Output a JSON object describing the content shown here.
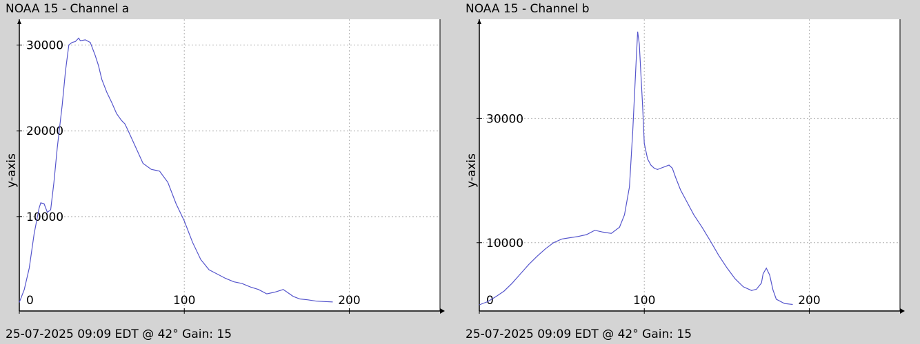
{
  "chart_data": [
    {
      "type": "line",
      "title": "NOAA 15 - Channel a",
      "ylabel": "y-axis",
      "xlabel": "",
      "footer": "25-07-2025 09:09 EDT @ 42° Gain: 15",
      "line_color": "#5555cc",
      "grid": true,
      "xlim": [
        0,
        255
      ],
      "ylim": [
        -1000,
        33000
      ],
      "x_ticks": [
        0,
        100,
        200
      ],
      "x_tick_labels": [
        "0",
        "100",
        "200"
      ],
      "y_ticks": [
        10000,
        20000,
        30000
      ],
      "y_tick_labels": [
        "10000",
        "20000",
        "30000"
      ],
      "series": [
        {
          "x": [
            0,
            3,
            6,
            9,
            12,
            13,
            15,
            17,
            19,
            21,
            23,
            26,
            28,
            30,
            32,
            34,
            36,
            37,
            40,
            43,
            46,
            48,
            50,
            53,
            56,
            59,
            62,
            64,
            66,
            70,
            75,
            80,
            85,
            90,
            95,
            100,
            105,
            110,
            115,
            120,
            125,
            130,
            135,
            140,
            145,
            150,
            155,
            160,
            163,
            166,
            170,
            175,
            180,
            185,
            190
          ],
          "values": [
            0,
            1500,
            4000,
            8000,
            11000,
            11600,
            11500,
            10500,
            10800,
            14000,
            18000,
            23000,
            27000,
            30000,
            30300,
            30400,
            30800,
            30500,
            30600,
            30300,
            28800,
            27600,
            26000,
            24500,
            23300,
            22000,
            21200,
            20800,
            20000,
            18300,
            16200,
            15500,
            15300,
            14000,
            11500,
            9500,
            7000,
            5000,
            3800,
            3300,
            2800,
            2400,
            2200,
            1800,
            1500,
            1000,
            1200,
            1500,
            1100,
            700,
            400,
            300,
            150,
            100,
            50
          ]
        }
      ]
    },
    {
      "type": "line",
      "title": "NOAA 15 - Channel b",
      "ylabel": "y-axis",
      "xlabel": "",
      "footer": "25-07-2025 09:09 EDT @ 42° Gain: 15",
      "line_color": "#5555cc",
      "grid": true,
      "xlim": [
        0,
        255
      ],
      "ylim": [
        -1000,
        46000
      ],
      "x_ticks": [
        0,
        100,
        200
      ],
      "x_tick_labels": [
        "0",
        "100",
        "200"
      ],
      "y_ticks": [
        10000,
        30000
      ],
      "y_tick_labels": [
        "10000",
        "30000"
      ],
      "series": [
        {
          "x": [
            0,
            5,
            10,
            15,
            20,
            25,
            30,
            35,
            40,
            45,
            50,
            55,
            60,
            65,
            70,
            75,
            80,
            85,
            88,
            91,
            93,
            95,
            96,
            97,
            99,
            100,
            102,
            104,
            106,
            108,
            110,
            112,
            115,
            117,
            119,
            122,
            126,
            130,
            135,
            140,
            145,
            150,
            155,
            160,
            165,
            168,
            171,
            172,
            174,
            176,
            178,
            180,
            185,
            190
          ],
          "values": [
            0,
            500,
            1300,
            2200,
            3500,
            5000,
            6500,
            7800,
            9000,
            10000,
            10600,
            10800,
            11000,
            11300,
            12000,
            11700,
            11500,
            12500,
            14500,
            19000,
            28000,
            39000,
            44000,
            42000,
            32000,
            26000,
            23500,
            22500,
            22000,
            21800,
            22000,
            22200,
            22500,
            22000,
            20500,
            18500,
            16500,
            14500,
            12500,
            10300,
            8000,
            6000,
            4200,
            2900,
            2300,
            2500,
            3500,
            5000,
            5900,
            4800,
            2400,
            900,
            200,
            50
          ]
        }
      ]
    }
  ]
}
